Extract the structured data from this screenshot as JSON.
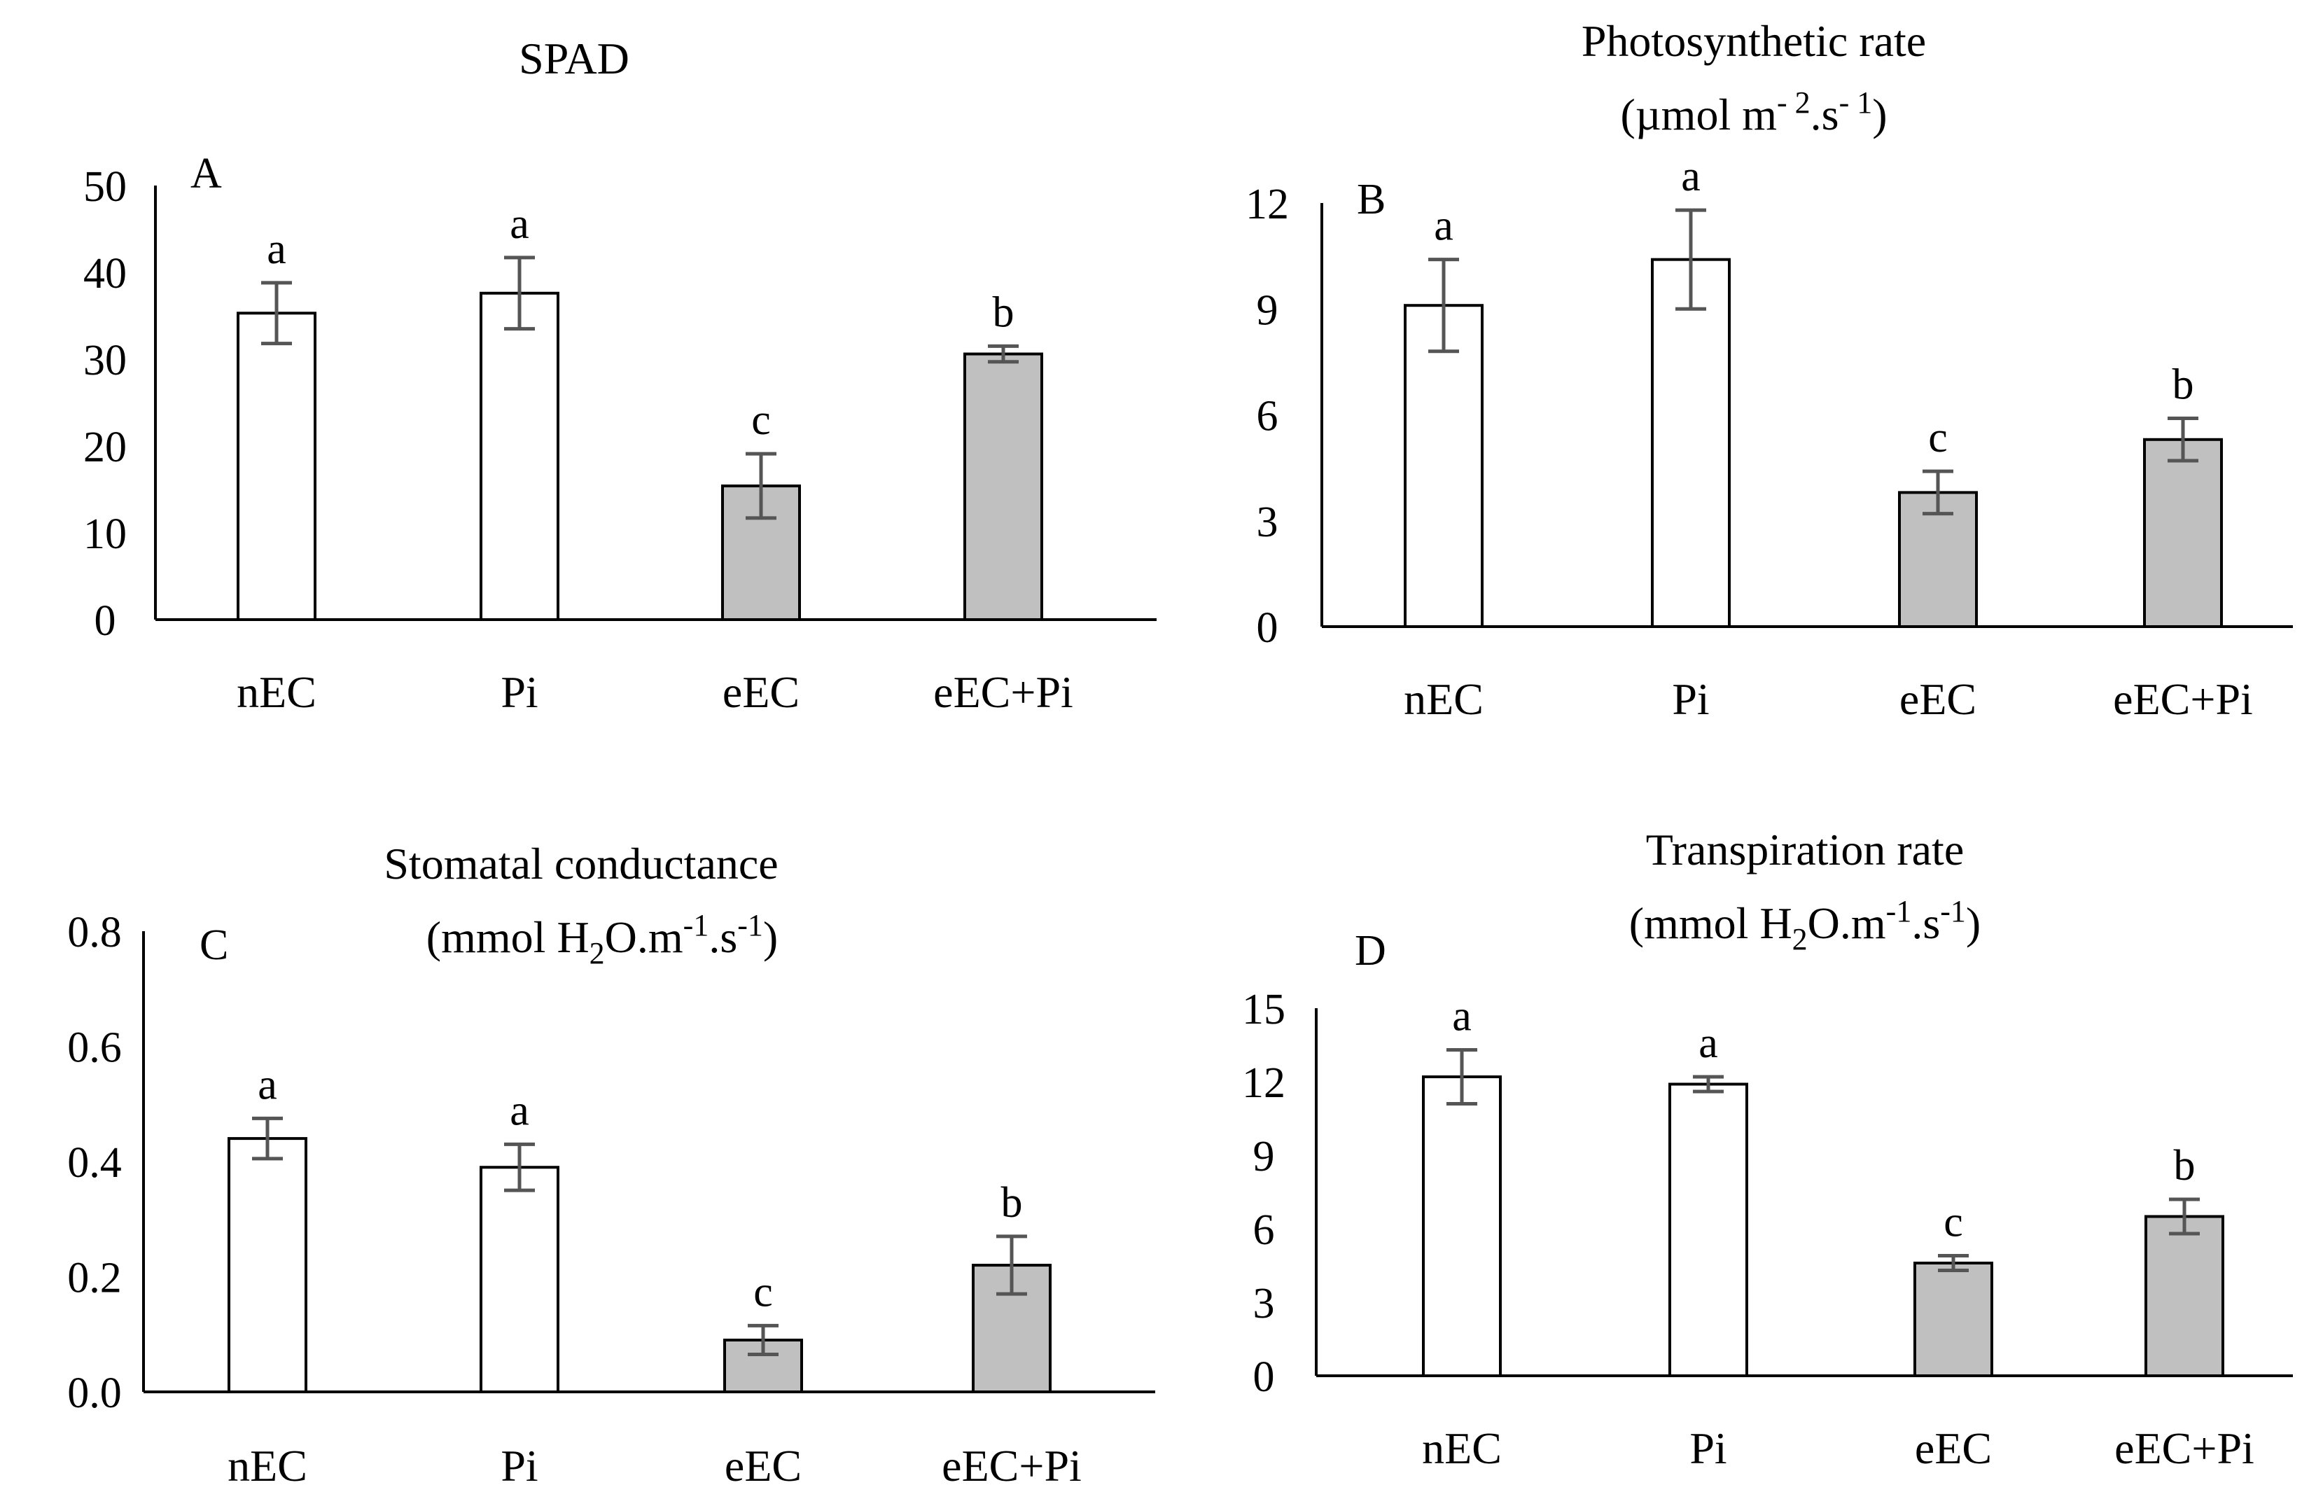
{
  "colors": {
    "bar_white": "#ffffff",
    "bar_gray": "#c0c0c0",
    "axis": "#000000",
    "error_bar": "#555555"
  },
  "chart_data": [
    {
      "type": "bar",
      "panel": "A",
      "title_lines": [
        "SPAD"
      ],
      "categories": [
        "nEC",
        "Pi",
        "eEC",
        "eEC+Pi"
      ],
      "values": [
        35.3,
        37.6,
        15.4,
        30.6
      ],
      "errors": [
        3.5,
        4.1,
        3.7,
        0.9
      ],
      "letters": [
        "a",
        "a",
        "c",
        "b"
      ],
      "bar_colors": [
        "white",
        "white",
        "gray",
        "gray"
      ],
      "ylim": [
        0,
        50
      ],
      "yticks": [
        "0",
        "10",
        "20",
        "30",
        "40",
        "50"
      ],
      "ytick_values": [
        0,
        10,
        20,
        30,
        40,
        50
      ]
    },
    {
      "type": "bar",
      "panel": "B",
      "title_lines": [
        "Photosynthetic rate",
        "(µmol m- 2.s- 1)"
      ],
      "categories": [
        "nEC",
        "Pi",
        "eEC",
        "eEC+Pi"
      ],
      "values": [
        9.1,
        10.4,
        3.8,
        5.3
      ],
      "errors": [
        1.3,
        1.4,
        0.6,
        0.6
      ],
      "letters": [
        "a",
        "a",
        "c",
        "b"
      ],
      "bar_colors": [
        "white",
        "white",
        "gray",
        "gray"
      ],
      "ylim": [
        0,
        12
      ],
      "yticks": [
        "0",
        "3",
        "6",
        "9",
        "12"
      ],
      "ytick_values": [
        0,
        3,
        6,
        9,
        12
      ]
    },
    {
      "type": "bar",
      "panel": "C",
      "title_lines": [
        "Stomatal conductance",
        "(mmol H2O.m-1.s-1)"
      ],
      "categories": [
        "nEC",
        "Pi",
        "eEC",
        "eEC+Pi"
      ],
      "values": [
        0.44,
        0.39,
        0.09,
        0.22
      ],
      "errors": [
        0.035,
        0.04,
        0.025,
        0.05
      ],
      "letters": [
        "a",
        "a",
        "c",
        "b"
      ],
      "bar_colors": [
        "white",
        "white",
        "gray",
        "gray"
      ],
      "ylim": [
        0,
        0.8
      ],
      "yticks": [
        "0.0",
        "0.2",
        "0.4",
        "0.6",
        "0.8"
      ],
      "ytick_values": [
        0,
        0.2,
        0.4,
        0.6,
        0.8
      ]
    },
    {
      "type": "bar",
      "panel": "D",
      "title_lines": [
        "Transpiration rate",
        "(mmol H2O.m-1.s-1)"
      ],
      "categories": [
        "nEC",
        "Pi",
        "eEC",
        "eEC+Pi"
      ],
      "values": [
        12.2,
        11.9,
        4.6,
        6.5
      ],
      "errors": [
        1.1,
        0.3,
        0.3,
        0.7
      ],
      "letters": [
        "a",
        "a",
        "c",
        "b"
      ],
      "bar_colors": [
        "white",
        "white",
        "gray",
        "gray"
      ],
      "ylim": [
        0,
        15
      ],
      "yticks": [
        "0",
        "3",
        "6",
        "9",
        "12",
        "15"
      ],
      "ytick_values": [
        0,
        3,
        6,
        9,
        12,
        15
      ]
    }
  ]
}
